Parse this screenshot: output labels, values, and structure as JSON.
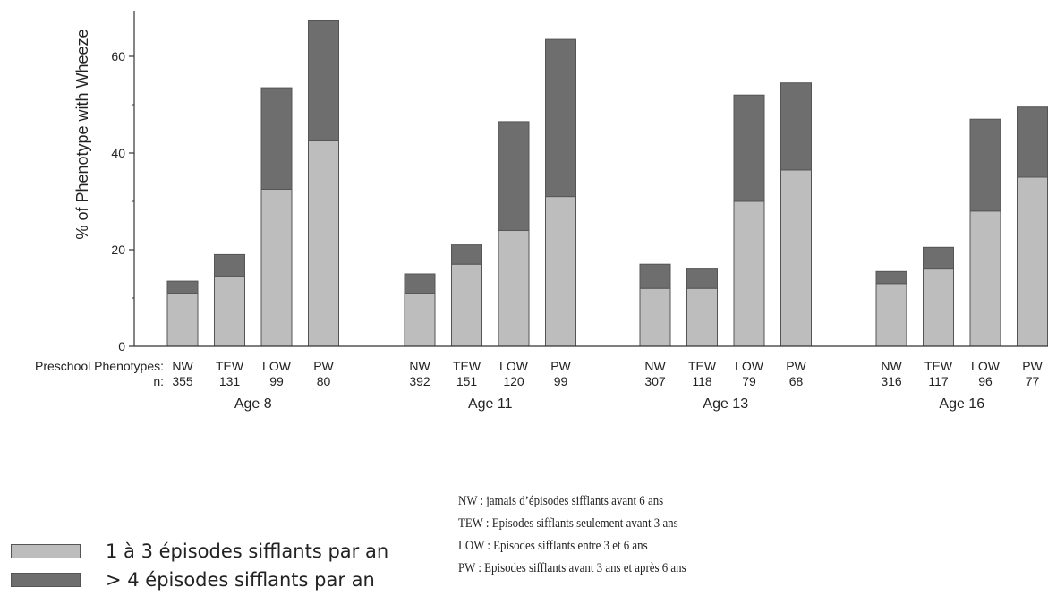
{
  "chart_data": {
    "type": "bar",
    "stacked": true,
    "ylabel": "% of Phenotype with Wheeze",
    "ylim": [
      0,
      70
    ],
    "yticks": [
      0,
      20,
      40,
      60
    ],
    "x_prefix_label": "Preschool Phenotypes:",
    "n_prefix_label": "n:",
    "colors": {
      "mild": "#bdbdbd",
      "severe": "#6e6e6e"
    },
    "groups": [
      {
        "label": "Age 8",
        "bars": [
          {
            "phenotype": "NW",
            "n": "355",
            "mild": 11,
            "total": 13.5
          },
          {
            "phenotype": "TEW",
            "n": "131",
            "mild": 14.5,
            "total": 19
          },
          {
            "phenotype": "LOW",
            "n": "99",
            "mild": 32.5,
            "total": 53.5
          },
          {
            "phenotype": "PW",
            "n": "80",
            "mild": 42.5,
            "total": 67.5
          }
        ]
      },
      {
        "label": "Age 11",
        "bars": [
          {
            "phenotype": "NW",
            "n": "392",
            "mild": 11,
            "total": 15
          },
          {
            "phenotype": "TEW",
            "n": "151",
            "mild": 17,
            "total": 21
          },
          {
            "phenotype": "LOW",
            "n": "120",
            "mild": 24,
            "total": 46.5
          },
          {
            "phenotype": "PW",
            "n": "99",
            "mild": 31,
            "total": 63.5
          }
        ]
      },
      {
        "label": "Age 13",
        "bars": [
          {
            "phenotype": "NW",
            "n": "307",
            "mild": 12,
            "total": 17
          },
          {
            "phenotype": "TEW",
            "n": "118",
            "mild": 12,
            "total": 16
          },
          {
            "phenotype": "LOW",
            "n": "79",
            "mild": 30,
            "total": 52
          },
          {
            "phenotype": "PW",
            "n": "68",
            "mild": 36.5,
            "total": 54.5
          }
        ]
      },
      {
        "label": "Age 16",
        "bars": [
          {
            "phenotype": "NW",
            "n": "316",
            "mild": 13,
            "total": 15.5
          },
          {
            "phenotype": "TEW",
            "n": "117",
            "mild": 16,
            "total": 20.5
          },
          {
            "phenotype": "LOW",
            "n": "96",
            "mild": 28,
            "total": 47
          },
          {
            "phenotype": "PW",
            "n": "77",
            "mild": 35,
            "total": 49.5
          }
        ]
      }
    ]
  },
  "legend": {
    "mild_label": "1 à 3 épisodes sifflants par an",
    "severe_label": "> 4 épisodes sifflants par an"
  },
  "definitions": [
    "NW : jamais d’épisodes sifflants avant 6 ans",
    "TEW : Episodes sifflants seulement avant 3 ans",
    "LOW : Episodes sifflants entre 3 et 6 ans",
    "PW : Episodes sifflants avant 3 ans et après 6 ans"
  ]
}
